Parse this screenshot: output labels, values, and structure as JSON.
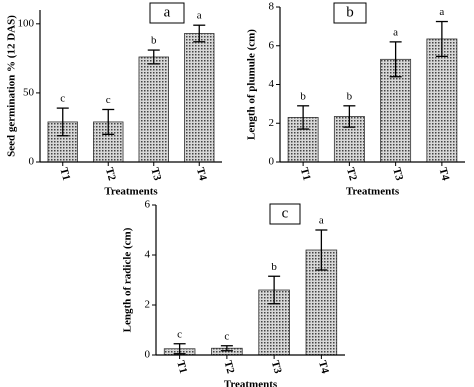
{
  "chart_data": [
    {
      "type": "bar",
      "panel": "a",
      "ylabel": "Seed germination % (12 DAS)",
      "xlabel": "Treatments",
      "categories": [
        "T1",
        "T2",
        "T3",
        "T4"
      ],
      "values": [
        29,
        29,
        76,
        93
      ],
      "errors": [
        10,
        9,
        5,
        6
      ],
      "annotations": [
        "c",
        "c",
        "b",
        "a"
      ],
      "ylim": [
        0,
        110
      ],
      "yticks": [
        0,
        50,
        100
      ],
      "color": "#9a9a9a"
    },
    {
      "type": "bar",
      "panel": "b",
      "ylabel": "Length of plumule (cm)",
      "xlabel": "Treatments",
      "categories": [
        "T1",
        "T2",
        "T3",
        "T4"
      ],
      "values": [
        2.3,
        2.35,
        5.3,
        6.35
      ],
      "errors": [
        0.6,
        0.55,
        0.9,
        0.9
      ],
      "annotations": [
        "b",
        "b",
        "a",
        "a"
      ],
      "ylim": [
        0,
        8
      ],
      "yticks": [
        0,
        2,
        4,
        6,
        8
      ],
      "color": "#9a9a9a"
    },
    {
      "type": "bar",
      "panel": "c",
      "ylabel": "Length of radicle (cm)",
      "xlabel": "Treatments",
      "categories": [
        "T1",
        "T2",
        "T3",
        "T4"
      ],
      "values": [
        0.25,
        0.27,
        2.6,
        4.2
      ],
      "errors": [
        0.2,
        0.1,
        0.55,
        0.8
      ],
      "annotations": [
        "c",
        "c",
        "b",
        "a"
      ],
      "ylim": [
        0,
        6
      ],
      "yticks": [
        0,
        2,
        4,
        6
      ],
      "color": "#9a9a9a"
    }
  ]
}
